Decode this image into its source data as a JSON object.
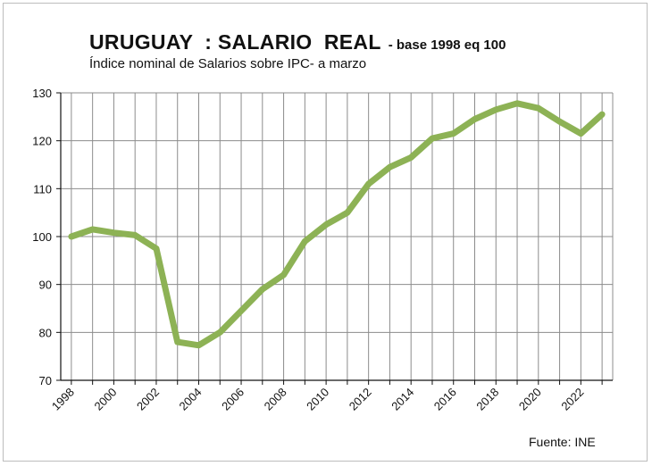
{
  "header": {
    "title": "URUGUAY  : SALARIO  REAL",
    "title_suffix": "- base 1998 eq 100",
    "subtitle": "Índice nominal de Salarios sobre IPC- a marzo"
  },
  "footer": {
    "source": "Fuente: INE"
  },
  "colors": {
    "line": "#8db255",
    "grid": "#8c8c8c",
    "axis": "#111111"
  },
  "chart_data": {
    "type": "line",
    "title": "URUGUAY  : SALARIO  REAL",
    "subtitle": "Índice nominal de Salarios sobre IPC- a marzo",
    "xlabel": "",
    "ylabel": "",
    "xlim": [
      1997.5,
      2023.5
    ],
    "ylim": [
      70,
      130
    ],
    "grid": true,
    "legend": "none",
    "y_ticks": [
      70,
      80,
      90,
      100,
      110,
      120,
      130
    ],
    "x_tick_labels": [
      "1998",
      "2000",
      "2002",
      "2004",
      "2006",
      "2008",
      "2010",
      "2012",
      "2014",
      "2016",
      "2018",
      "2020",
      "2022"
    ],
    "x_tick_values": [
      1998,
      2000,
      2002,
      2004,
      2006,
      2008,
      2010,
      2012,
      2014,
      2016,
      2018,
      2020,
      2022
    ],
    "series": [
      {
        "x": [
          1998,
          1999,
          2000,
          2001,
          2002,
          2003,
          2004,
          2005,
          2006,
          2007,
          2008,
          2009,
          2010,
          2011,
          2012,
          2013,
          2014,
          2015,
          2016,
          2017,
          2018,
          2019,
          2020,
          2021,
          2022,
          2023
        ],
        "values": [
          100,
          101.5,
          100.8,
          100.3,
          97.5,
          78,
          77.3,
          80,
          84.5,
          89,
          92,
          99,
          102.5,
          105,
          111,
          114.5,
          116.5,
          120.5,
          121.5,
          124.5,
          126.5,
          127.8,
          126.8,
          124,
          121.5,
          125.5
        ]
      }
    ]
  }
}
